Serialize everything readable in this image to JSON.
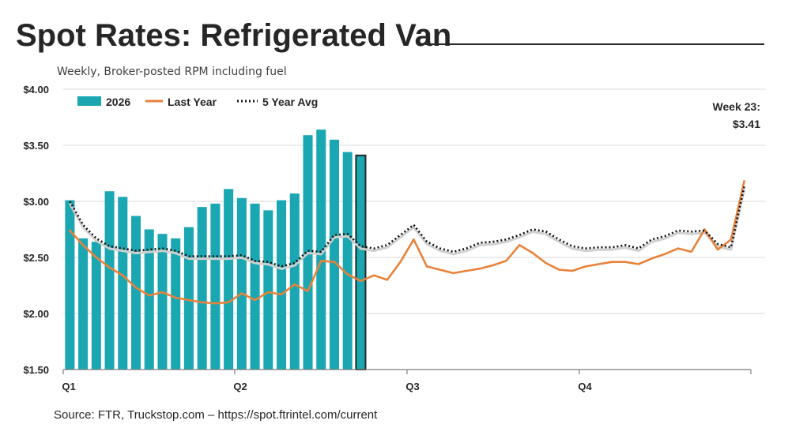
{
  "header": {
    "title": "Spot Rates: Refrigerated Van",
    "subtitle": "Weekly, Broker-posted RPM including fuel"
  },
  "footer": {
    "source": "Source: FTR, Truckstop.com – https://spot.ftrintel.com/current"
  },
  "colors": {
    "bars": "#1aa7b2",
    "highlight_bar": "#1aa7b2",
    "highlight_outline": "#262626",
    "last_year": "#e8823a",
    "five_year_avg": "#111111",
    "grid": "#d9d9d9",
    "axis": "#7f7f7f"
  },
  "chart_data": {
    "type": "bar",
    "title": "Spot Rates: Refrigerated Van",
    "subtitle": "Weekly, Broker-posted RPM including fuel",
    "xlabel": "",
    "ylabel": "",
    "x_ticks": [
      "Q1",
      "Q2",
      "Q3",
      "Q4"
    ],
    "y_ticks": [
      "$1.50",
      "$2.00",
      "$2.50",
      "$3.00",
      "$3.50",
      "$4.00"
    ],
    "ylim": [
      1.5,
      4.0
    ],
    "grid": true,
    "legend": {
      "placement": "top-left",
      "entries": [
        "2026",
        "Last Year",
        "5 Year Avg"
      ]
    },
    "annotation": {
      "line1": "Week 23:",
      "line2": "$3.41"
    },
    "weeks_total": 52,
    "series": [
      {
        "name": "2026",
        "kind": "bar",
        "values": [
          3.01,
          2.67,
          2.64,
          3.09,
          3.04,
          2.87,
          2.75,
          2.71,
          2.67,
          2.77,
          2.95,
          2.98,
          3.11,
          3.03,
          2.98,
          2.92,
          3.01,
          3.07,
          3.59,
          3.64,
          3.55,
          3.44,
          3.41
        ],
        "highlight_last": true
      },
      {
        "name": "Last Year",
        "kind": "line",
        "values": [
          2.74,
          2.61,
          2.5,
          2.41,
          2.34,
          2.23,
          2.16,
          2.19,
          2.14,
          2.12,
          2.1,
          2.09,
          2.1,
          2.18,
          2.12,
          2.19,
          2.17,
          2.26,
          2.2,
          2.47,
          2.46,
          2.35,
          2.29,
          2.34,
          2.3,
          2.46,
          2.66,
          2.42,
          2.39,
          2.36,
          2.38,
          2.4,
          2.43,
          2.47,
          2.61,
          2.54,
          2.45,
          2.39,
          2.38,
          2.42,
          2.44,
          2.46,
          2.46,
          2.44,
          2.49,
          2.53,
          2.58,
          2.55,
          2.75,
          2.57,
          2.66,
          3.18
        ]
      },
      {
        "name": "5 Year Avg",
        "kind": "line",
        "values": [
          3.0,
          2.79,
          2.67,
          2.6,
          2.58,
          2.56,
          2.57,
          2.58,
          2.56,
          2.51,
          2.51,
          2.51,
          2.51,
          2.52,
          2.47,
          2.46,
          2.42,
          2.45,
          2.56,
          2.55,
          2.7,
          2.71,
          2.6,
          2.58,
          2.61,
          2.7,
          2.79,
          2.64,
          2.58,
          2.55,
          2.58,
          2.63,
          2.64,
          2.66,
          2.7,
          2.75,
          2.73,
          2.66,
          2.6,
          2.58,
          2.59,
          2.59,
          2.61,
          2.58,
          2.66,
          2.69,
          2.74,
          2.73,
          2.74,
          2.62,
          2.59,
          3.13
        ]
      }
    ]
  }
}
